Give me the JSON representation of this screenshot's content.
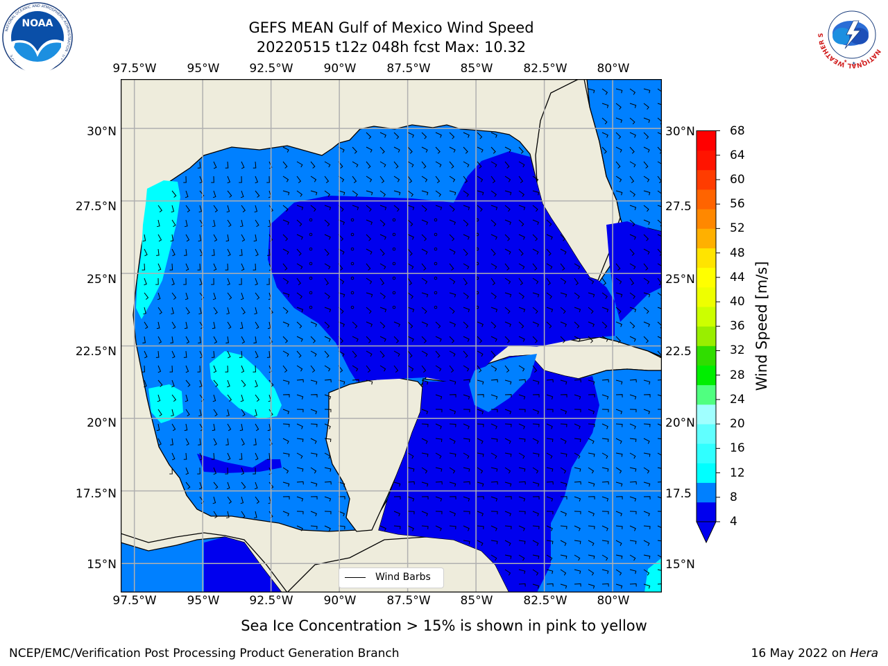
{
  "title": {
    "line1": "GEFS MEAN Gulf of Mexico Wind Speed",
    "line2": "20220515 t12z 048h fcst   Max: 10.32"
  },
  "axes": {
    "lon_labels": [
      "97.5°W",
      "95°W",
      "92.5°W",
      "90°W",
      "87.5°W",
      "85°W",
      "82.5°W",
      "80°W"
    ],
    "lat_labels_left": [
      "30°N",
      "27.5°N",
      "25°N",
      "22.5°N",
      "20°N",
      "17.5°N",
      "15°N"
    ],
    "lat_labels_right": [
      "30°N",
      "27.5",
      "25°N",
      "22.5",
      "20°N",
      "17.5",
      "15°N"
    ]
  },
  "map": {
    "lon_range": [
      -98.0,
      -78.2
    ],
    "lat_range": [
      14.0,
      31.7
    ],
    "land_color": "#eeecdc",
    "grid_color": "#b0b0b0"
  },
  "colorbar": {
    "label": "Wind Speed [m/s]",
    "ticks": [
      "4",
      "8",
      "12",
      "16",
      "20",
      "24",
      "28",
      "32",
      "36",
      "40",
      "44",
      "48",
      "52",
      "56",
      "60",
      "64",
      "68"
    ],
    "colors": [
      "#0000ee",
      "#0080ff",
      "#00ffff",
      "#30ffff",
      "#60ffff",
      "#a0ffff",
      "#50ff80",
      "#00ee00",
      "#30dd00",
      "#99ee00",
      "#ccff00",
      "#eeff00",
      "#ffff00",
      "#ffe400",
      "#ffb000",
      "#ff8800",
      "#ff6400",
      "#ff3c00",
      "#ff1400",
      "#ff0000"
    ]
  },
  "legend": {
    "label": "Wind Barbs"
  },
  "caption": "Sea Ice Concentration > 15% is shown in pink to yellow",
  "footer": {
    "left": "NCEP/EMC/Verification Post Processing Product Generation Branch",
    "right_prefix": "16 May 2022 on ",
    "right_machine": "Hera"
  },
  "logos": {
    "noaa_text": "NOAA",
    "noaa_ring": "NATIONAL OCEANIC AND ATMOSPHERIC ADMINISTRATION · U.S. DEPARTMENT OF COMMERCE",
    "nws_ring": "NATIONAL WEATHER SERVICE"
  }
}
